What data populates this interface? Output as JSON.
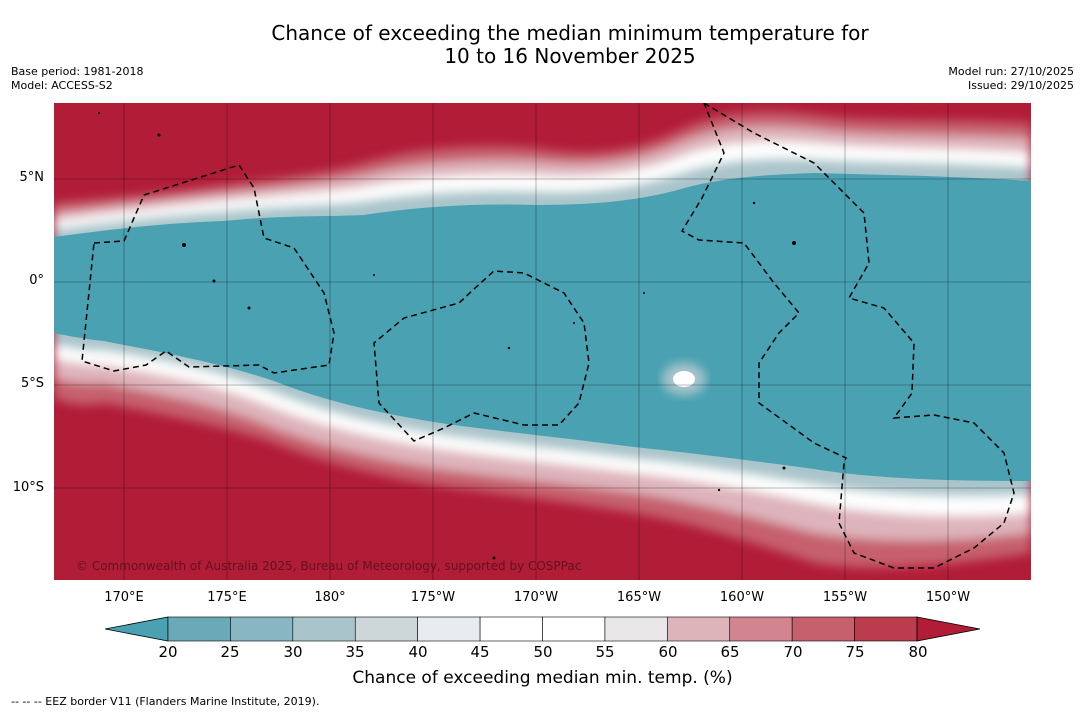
{
  "title": {
    "line1": "Chance of exceeding the median minimum temperature for",
    "line2": "10 to 16 November 2025"
  },
  "meta": {
    "base_period": "Base period: 1981-2018",
    "model": "Model: ACCESS-S2",
    "model_run": "Model run: 27/10/2025",
    "issued": "Issued: 29/10/2025"
  },
  "map": {
    "lat_labels": [
      "5°N",
      "0°",
      "5°S",
      "10°S"
    ],
    "lon_labels": [
      "170°E",
      "175°E",
      "180°",
      "175°W",
      "170°W",
      "165°W",
      "160°W",
      "155°W",
      "150°W"
    ],
    "copyright": "© Commonwealth of Australia 2025, Bureau of Meteorology, supported by COSPPac"
  },
  "colorbar": {
    "ticks": [
      "20",
      "25",
      "30",
      "35",
      "40",
      "45",
      "50",
      "55",
      "60",
      "65",
      "70",
      "75",
      "80"
    ],
    "colors": [
      "#49a1b1",
      "#6aa9b7",
      "#88b6c2",
      "#a9c5cb",
      "#cdd7da",
      "#e6ecef",
      "#ffffff",
      "#ffffff",
      "#e9e6e7",
      "#deb4bb",
      "#d3858f",
      "#c6606d",
      "#bb3c4c",
      "#b11c37"
    ],
    "title": "Chance of exceeding median min. temp. (%)"
  },
  "footnote": "--  --  -- EEZ border V11 (Flanders Marine Institute, 2019)."
}
